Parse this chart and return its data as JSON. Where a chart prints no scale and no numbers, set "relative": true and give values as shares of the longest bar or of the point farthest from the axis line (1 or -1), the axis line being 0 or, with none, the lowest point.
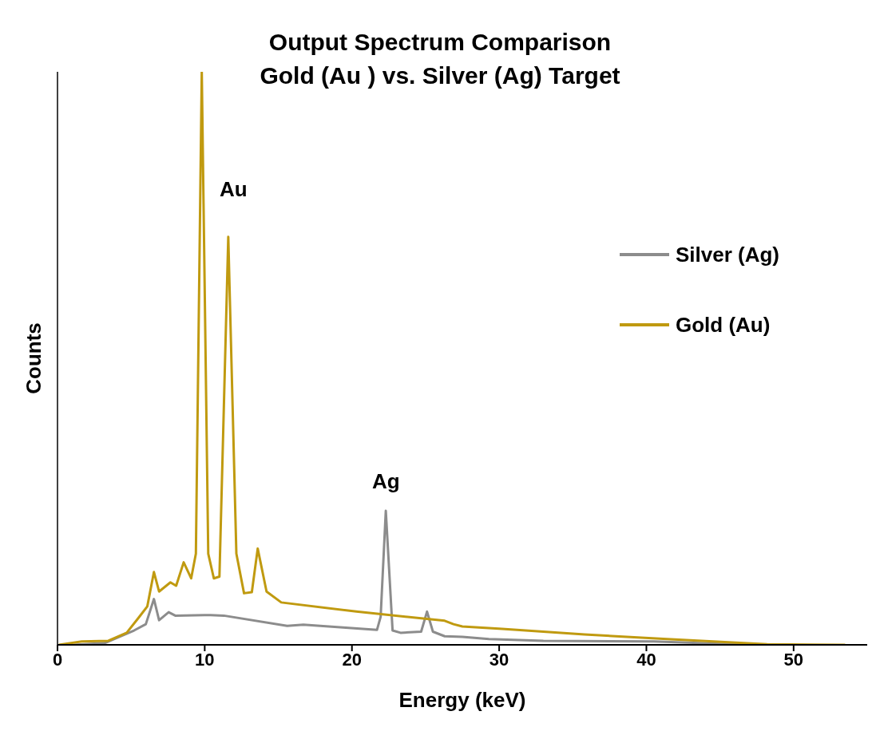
{
  "chart_data": {
    "type": "line",
    "title": "Output Spectrum Comparison",
    "subtitle": "Gold (Au ) vs. Silver (Ag) Target",
    "xlabel": "Energy (keV)",
    "ylabel": "Counts",
    "relative": true,
    "xlim": [
      0,
      55
    ],
    "xticks": [
      0,
      10,
      20,
      30,
      40,
      50
    ],
    "legend": "right",
    "grid": false,
    "annotations": [
      "Au",
      "Ag"
    ],
    "series": [
      {
        "name": "Silver (Ag)",
        "color": "#8c8c8c",
        "x": [
          1.1,
          3.2,
          5.2,
          6.0,
          6.55,
          6.9,
          7.55,
          8.0,
          10.4,
          11.3,
          15.6,
          16.7,
          21.7,
          21.95,
          22.3,
          22.76,
          23.3,
          24.7,
          25.1,
          25.5,
          26.3,
          27.5,
          29.3,
          33.0,
          40.5,
          47.0
        ],
        "values": [
          0,
          0.003,
          0.025,
          0.036,
          0.08,
          0.043,
          0.057,
          0.051,
          0.052,
          0.051,
          0.033,
          0.035,
          0.026,
          0.049,
          0.234,
          0.025,
          0.021,
          0.023,
          0.058,
          0.023,
          0.015,
          0.014,
          0.01,
          0.007,
          0.006,
          0
        ]
      },
      {
        "name": "Gold (Au)",
        "color": "#c09a10",
        "x": [
          0.1,
          1.65,
          3.45,
          4.7,
          5.5,
          6.1,
          6.55,
          6.9,
          7.67,
          8.06,
          8.57,
          9.08,
          9.4,
          9.8,
          10.24,
          10.62,
          11.0,
          11.6,
          12.15,
          12.67,
          13.2,
          13.6,
          14.2,
          15.2,
          20.3,
          26.3,
          26.9,
          27.5,
          30.2,
          35.8,
          41.4,
          48.2,
          53.5
        ],
        "values": [
          0,
          0.006,
          0.007,
          0.021,
          0.047,
          0.067,
          0.127,
          0.093,
          0.109,
          0.103,
          0.144,
          0.116,
          0.159,
          1,
          0.159,
          0.116,
          0.119,
          0.712,
          0.159,
          0.09,
          0.092,
          0.168,
          0.093,
          0.074,
          0.058,
          0.042,
          0.036,
          0.032,
          0.028,
          0.018,
          0.01,
          0.001,
          0
        ]
      }
    ]
  }
}
